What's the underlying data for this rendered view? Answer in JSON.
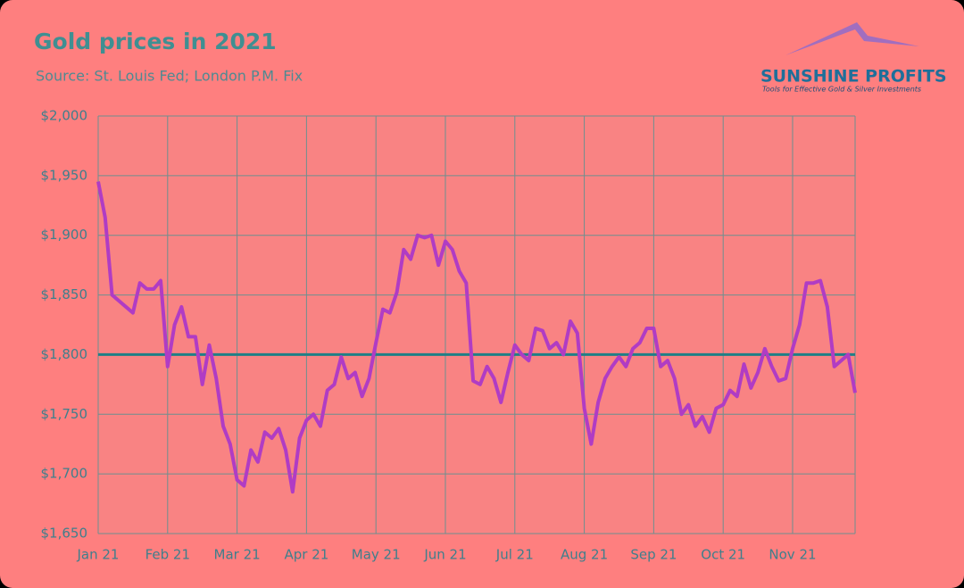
{
  "chart_data": {
    "type": "line",
    "title": "Gold prices in 2021",
    "subtitle": "Source: St. Louis Fed; London P.M. Fix",
    "logo": {
      "name": "SUNSHINE PROFITS",
      "tagline": "Tools for Effective Gold & Silver Investments"
    },
    "series": [
      {
        "name": "Gold price",
        "color": "#b03cc4",
        "values": [
          1945,
          1915,
          1850,
          1845,
          1840,
          1835,
          1860,
          1855,
          1855,
          1862,
          1790,
          1825,
          1840,
          1815,
          1815,
          1775,
          1808,
          1780,
          1740,
          1725,
          1695,
          1690,
          1720,
          1710,
          1735,
          1730,
          1738,
          1720,
          1685,
          1730,
          1745,
          1750,
          1740,
          1770,
          1775,
          1798,
          1780,
          1785,
          1765,
          1780,
          1810,
          1838,
          1835,
          1852,
          1888,
          1880,
          1900,
          1898,
          1900,
          1875,
          1895,
          1888,
          1870,
          1860,
          1778,
          1775,
          1790,
          1780,
          1760,
          1785,
          1808,
          1800,
          1795,
          1822,
          1820,
          1805,
          1810,
          1800,
          1828,
          1818,
          1755,
          1725,
          1760,
          1780,
          1790,
          1798,
          1790,
          1805,
          1810,
          1822,
          1822,
          1790,
          1795,
          1780,
          1750,
          1758,
          1740,
          1748,
          1735,
          1755,
          1758,
          1770,
          1765,
          1792,
          1772,
          1785,
          1805,
          1790,
          1778,
          1780,
          1805,
          1825,
          1860,
          1860,
          1862,
          1840,
          1790,
          1795,
          1800,
          1768
        ]
      }
    ],
    "reference_line": {
      "value": 1800,
      "color": "#1f7f86"
    },
    "xlim": [
      0,
      109
    ],
    "xticks": [
      {
        "value": 0,
        "label": "Jan 21"
      },
      {
        "value": 10,
        "label": "Feb 21"
      },
      {
        "value": 20,
        "label": "Mar 21"
      },
      {
        "value": 30,
        "label": "Apr 21"
      },
      {
        "value": 40,
        "label": "May 21"
      },
      {
        "value": 50,
        "label": "Jun 21"
      },
      {
        "value": 60,
        "label": "Jul 21"
      },
      {
        "value": 70,
        "label": "Aug 21"
      },
      {
        "value": 80,
        "label": "Sep 21"
      },
      {
        "value": 90,
        "label": "Oct 21"
      },
      {
        "value": 100,
        "label": "Nov 21"
      }
    ],
    "ylim": [
      1650,
      2000
    ],
    "yticks": [
      {
        "value": 1650,
        "label": "$1,650"
      },
      {
        "value": 1700,
        "label": "$1,700"
      },
      {
        "value": 1750,
        "label": "$1,750"
      },
      {
        "value": 1800,
        "label": "$1,800"
      },
      {
        "value": 1850,
        "label": "$1,850"
      },
      {
        "value": 1900,
        "label": "$1,900"
      },
      {
        "value": 1950,
        "label": "$1,950"
      },
      {
        "value": 2000,
        "label": "$2,000"
      }
    ],
    "grid": true
  }
}
